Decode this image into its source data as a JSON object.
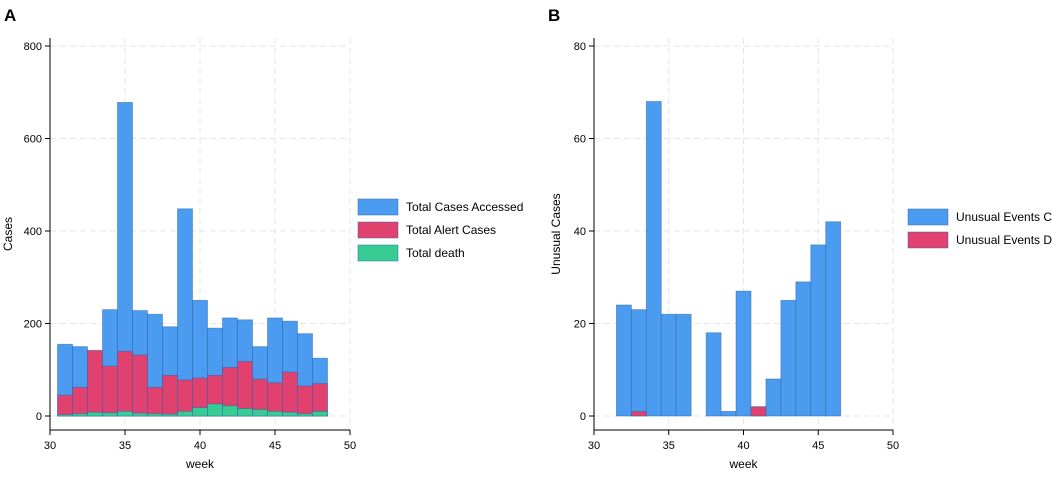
{
  "panels": {
    "A": {
      "label": "A"
    },
    "B": {
      "label": "B"
    }
  },
  "chart_data": [
    {
      "panel": "A",
      "type": "bar",
      "stacking": "overlaid",
      "xlabel": "week",
      "ylabel": "Cases",
      "xlim": [
        30,
        50
      ],
      "ylim": [
        0,
        800
      ],
      "xticks": [
        30,
        35,
        40,
        45,
        50
      ],
      "yticks": [
        0,
        200,
        400,
        600,
        800
      ],
      "grid": true,
      "legend_position": "right",
      "colors": {
        "Total Cases Accessed": "#4b9bf0",
        "Total Alert Cases": "#e0416e",
        "Total death": "#37cc94"
      },
      "x": [
        31,
        32,
        33,
        34,
        35,
        36,
        37,
        38,
        39,
        40,
        41,
        42,
        43,
        44,
        45,
        46,
        47,
        48
      ],
      "series": [
        {
          "name": "Total Cases Accessed",
          "values": [
            155,
            150,
            115,
            230,
            678,
            228,
            220,
            193,
            448,
            250,
            190,
            212,
            208,
            150,
            212,
            205,
            178,
            125
          ]
        },
        {
          "name": "Total Alert Cases",
          "values": [
            45,
            62,
            142,
            108,
            140,
            132,
            62,
            88,
            78,
            82,
            88,
            105,
            118,
            80,
            72,
            95,
            65,
            70
          ]
        },
        {
          "name": "Total death",
          "values": [
            3,
            5,
            8,
            7,
            10,
            6,
            5,
            4,
            10,
            18,
            26,
            22,
            16,
            14,
            10,
            8,
            5,
            10
          ]
        }
      ]
    },
    {
      "panel": "B",
      "type": "bar",
      "stacking": "overlaid",
      "xlabel": "week",
      "ylabel": "Unusual Cases",
      "xlim": [
        30,
        50
      ],
      "ylim": [
        0,
        80
      ],
      "xticks": [
        30,
        35,
        40,
        45,
        50
      ],
      "yticks": [
        0,
        20,
        40,
        60,
        80
      ],
      "grid": true,
      "legend_position": "right",
      "colors": {
        "Unusual Events Case": "#4b9bf0",
        "Unusual Events Death": "#e0416e"
      },
      "x": [
        32,
        33,
        34,
        35,
        36,
        37,
        38,
        39,
        40,
        41,
        42,
        43,
        44,
        45,
        46
      ],
      "series": [
        {
          "name": "Unusual Events Case",
          "values": [
            24,
            23,
            68,
            22,
            22,
            0,
            18,
            1,
            27,
            2,
            8,
            25,
            29,
            37,
            42
          ]
        },
        {
          "name": "Unusual Events Death",
          "values": [
            0,
            1,
            0,
            0,
            0,
            0,
            0,
            0,
            0,
            2,
            0,
            0,
            0,
            0,
            0
          ]
        }
      ]
    }
  ]
}
